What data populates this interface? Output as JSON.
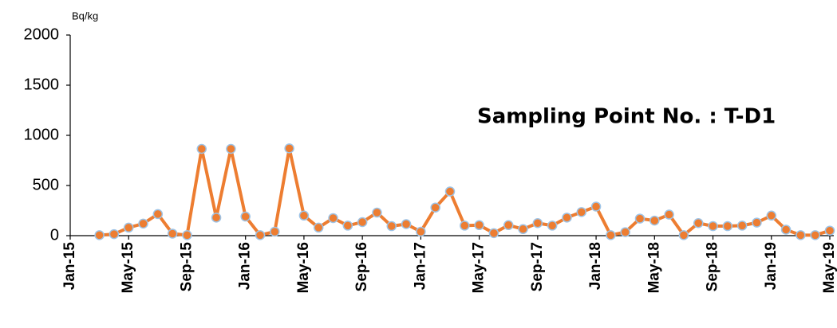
{
  "chart_data": {
    "type": "line",
    "title": "Sampling Point No. : T-D1",
    "y_axis_label": "Bq/kg",
    "x": [
      "Mar-15",
      "Apr-15",
      "May-15",
      "Jun-15",
      "Jul-15",
      "Aug-15",
      "Sep-15",
      "Oct-15",
      "Nov-15",
      "Dec-15",
      "Jan-16",
      "Feb-16",
      "Mar-16",
      "Apr-16",
      "May-16",
      "Jun-16",
      "Jul-16",
      "Aug-16",
      "Sep-16",
      "Oct-16",
      "Nov-16",
      "Dec-16",
      "Jan-17",
      "Feb-17",
      "Mar-17",
      "Apr-17",
      "May-17",
      "Jun-17",
      "Jul-17",
      "Aug-17",
      "Sep-17",
      "Oct-17",
      "Nov-17",
      "Dec-17",
      "Jan-18",
      "Feb-18",
      "Mar-18",
      "Apr-18",
      "May-18",
      "Jun-18",
      "Jul-18",
      "Aug-18",
      "Sep-18",
      "Oct-18",
      "Nov-18",
      "Dec-18",
      "Jan-19",
      "Feb-19",
      "Mar-19",
      "Apr-19",
      "May-19"
    ],
    "series": [
      {
        "color": "#ed7d31",
        "marker_edge_color": "#9dc3e6",
        "values": [
          5,
          15,
          80,
          120,
          215,
          20,
          5,
          865,
          180,
          865,
          190,
          5,
          40,
          870,
          200,
          80,
          175,
          100,
          135,
          230,
          95,
          115,
          40,
          280,
          440,
          100,
          105,
          25,
          105,
          65,
          125,
          100,
          180,
          235,
          290,
          5,
          35,
          170,
          150,
          210,
          5,
          125,
          95,
          95,
          100,
          130,
          200,
          60,
          5,
          5,
          50
        ]
      }
    ],
    "xlim": [
      "Jan-15",
      "May-19"
    ],
    "xticks": [
      "Jan-15",
      "May-15",
      "Sep-15",
      "Jan-16",
      "May-16",
      "Sep-16",
      "Jan-17",
      "May-17",
      "Sep-17",
      "Jan-18",
      "May-18",
      "Sep-18",
      "Jan-19",
      "May-19"
    ],
    "ylim": [
      0,
      2000
    ],
    "yticks": [
      0,
      500,
      1000,
      1500,
      2000
    ],
    "grid": false
  }
}
